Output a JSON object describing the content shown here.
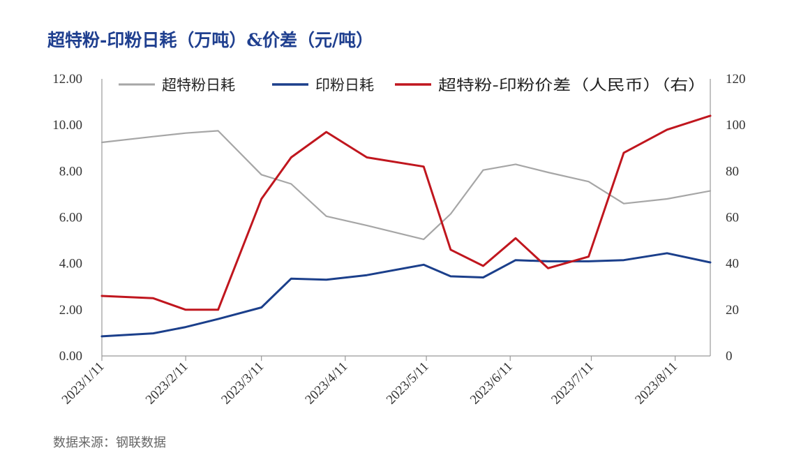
{
  "chart_data": {
    "type": "line",
    "title": "超特粉-印粉日耗（万吨）&价差（元/吨）",
    "source": "数据来源：钢联数据",
    "legend_position": "top",
    "grid": false,
    "x_tick_labels": [
      "2023/1/11",
      "2023/2/11",
      "2023/3/11",
      "2023/4/11",
      "2023/5/11",
      "2023/6/11",
      "2023/7/11",
      "2023/8/11"
    ],
    "y_left": {
      "ylim": [
        0,
        12
      ],
      "ticks": [
        "0.00",
        "2.00",
        "4.00",
        "6.00",
        "8.00",
        "10.00",
        "12.00"
      ]
    },
    "y_right": {
      "ylim": [
        0,
        120
      ],
      "ticks": [
        "0",
        "20",
        "40",
        "60",
        "80",
        "100",
        "120"
      ]
    },
    "x": [
      "2023-01-11",
      "2023-01-30",
      "2023-02-11",
      "2023-02-23",
      "2023-03-11",
      "2023-03-22",
      "2023-04-04",
      "2023-04-19",
      "2023-05-10",
      "2023-05-20",
      "2023-06-01",
      "2023-06-13",
      "2023-06-25",
      "2023-07-10",
      "2023-07-23",
      "2023-08-08",
      "2023-08-24"
    ],
    "series": [
      {
        "name": "超特粉日耗",
        "axis": "left",
        "color": "#a6a6a6",
        "values": [
          9.25,
          9.5,
          9.65,
          9.75,
          7.85,
          7.45,
          6.05,
          5.65,
          5.05,
          6.15,
          8.05,
          8.3,
          7.95,
          7.55,
          6.6,
          6.8,
          7.15
        ]
      },
      {
        "name": "印粉日耗",
        "axis": "left",
        "color": "#1b3f8b",
        "values": [
          0.85,
          0.98,
          1.25,
          1.6,
          2.1,
          3.35,
          3.3,
          3.5,
          3.95,
          3.45,
          3.4,
          4.15,
          4.1,
          4.1,
          4.15,
          4.45,
          4.05
        ]
      },
      {
        "name": "超特粉-印粉价差（人民币）（右）",
        "axis": "right",
        "color": "#c0161e",
        "values": [
          26,
          25,
          20,
          20,
          68,
          86,
          97,
          86,
          82,
          46,
          39,
          51,
          38,
          43,
          88,
          98,
          104
        ]
      }
    ]
  }
}
